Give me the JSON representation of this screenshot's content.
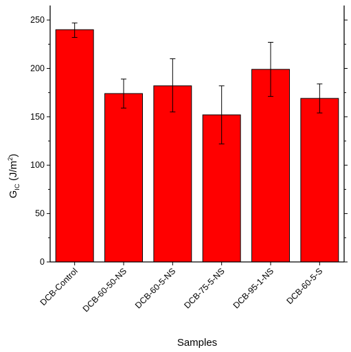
{
  "chart_data": {
    "type": "bar",
    "categories": [
      "DCB-Control",
      "DCB-60-50-NS",
      "DCB-60-5-NS",
      "DCB-75-5-NS",
      "DCB-95-1-NS",
      "DCB-60-5-S"
    ],
    "values": [
      240,
      174,
      182,
      152,
      199,
      169
    ],
    "error_high": [
      247,
      189,
      210,
      182,
      227,
      184
    ],
    "error_low": [
      232,
      159,
      155,
      122,
      171,
      154
    ],
    "xlabel": "Samples",
    "ylabel": {
      "main": "G",
      "sub": "IC",
      "unit_open": " (J/m",
      "sup": "2",
      "unit_close": ")"
    },
    "ylim": [
      0,
      265
    ],
    "yticks": [
      0,
      50,
      100,
      150,
      200,
      250
    ],
    "grid": false,
    "colors": {
      "bar_fill": "#ff0000",
      "bar_stroke": "#000000",
      "axis": "#000000"
    }
  }
}
